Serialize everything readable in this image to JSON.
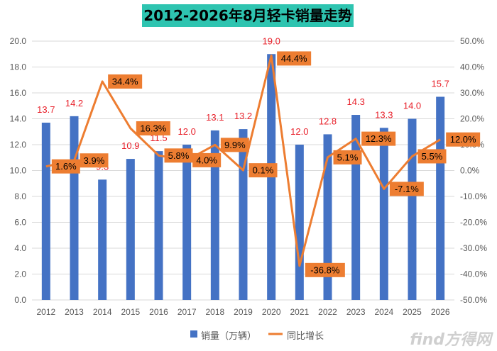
{
  "chart_data": {
    "type": "bar",
    "title": "2012-2026年8月轻卡销量走势",
    "categories": [
      "2012",
      "2013",
      "2014",
      "2015",
      "2016",
      "2017",
      "2018",
      "2019",
      "2020",
      "2021",
      "2022",
      "2023",
      "2024",
      "2025",
      "2026"
    ],
    "series": [
      {
        "name": "销量（万辆）",
        "type": "bar",
        "axis": "left",
        "values": [
          13.7,
          14.2,
          9.3,
          10.9,
          11.5,
          12.0,
          13.1,
          13.2,
          19.0,
          12.0,
          12.8,
          14.3,
          13.3,
          14.0,
          15.7
        ],
        "labels": [
          "13.7",
          "14.2",
          "9.3",
          "10.9",
          "11.5",
          "12.0",
          "13.1",
          "13.2",
          "19.0",
          "12.0",
          "12.8",
          "14.3",
          "13.3",
          "14.0",
          "15.7"
        ],
        "color": "#4472c4",
        "label_color": "#e8202a"
      },
      {
        "name": "同比增长",
        "type": "line",
        "axis": "right",
        "values": [
          1.6,
          3.9,
          34.4,
          16.3,
          5.8,
          4.0,
          9.9,
          0.1,
          44.4,
          -36.8,
          5.1,
          12.3,
          -7.1,
          5.5,
          12.0
        ],
        "labels": [
          "1.6%",
          "3.9%",
          "34.4%",
          "16.3%",
          "5.8%",
          "4.0%",
          "9.9%",
          "0.1%",
          "44.4%",
          "-36.8%",
          "5.1%",
          "12.3%",
          "-7.1%",
          "5.5%",
          "12.0%"
        ],
        "color": "#ed7d31"
      }
    ],
    "y_left": {
      "min": 0,
      "max": 20,
      "ticks": [
        "0.0",
        "2.0",
        "4.0",
        "6.0",
        "8.0",
        "10.0",
        "12.0",
        "14.0",
        "16.0",
        "18.0",
        "20.0"
      ]
    },
    "y_right": {
      "min": -50,
      "max": 50,
      "ticks": [
        "-50.0%",
        "-40.0%",
        "-30.0%",
        "-20.0%",
        "-10.0%",
        "0.0%",
        "10.0%",
        "20.0%",
        "30.0%",
        "40.0%",
        "50.0%"
      ]
    },
    "grid": true,
    "legend": "bottom",
    "watermark": "find方得网"
  }
}
